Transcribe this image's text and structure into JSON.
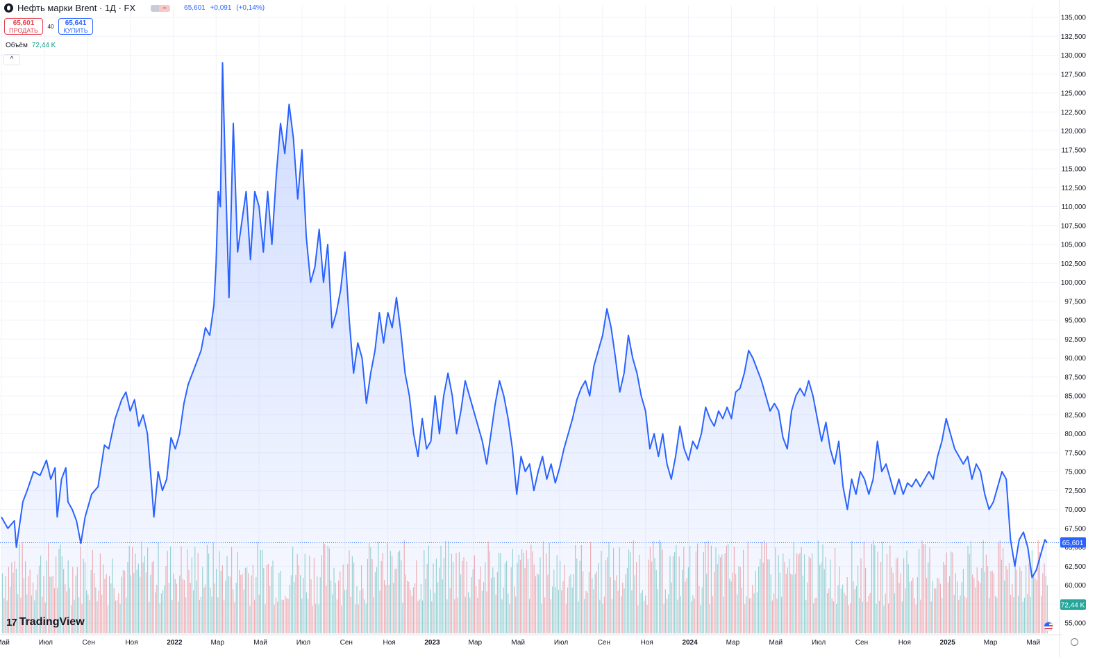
{
  "header": {
    "symbol_icon": "oil-drop-icon",
    "title": "Нефть марки Brent · 1Д · FX",
    "badge_right": "≈",
    "last_price": "65,601",
    "change": "+0,091",
    "change_pct": "(+0,14%)"
  },
  "trade": {
    "sell_price": "65,601",
    "sell_label": "ПРОДАТЬ",
    "spread": "40",
    "buy_price": "65,641",
    "buy_label": "КУПИТЬ"
  },
  "volume": {
    "label": "Объём",
    "value": "72,44 K"
  },
  "collapse_icon": "chevron-up-icon",
  "logo": {
    "mark": "17",
    "text": "TradingView"
  },
  "settings_icon": "gear-icon",
  "flag_icon": "us-flag-icon",
  "price_label": "65,601",
  "volume_label": "72,44 K",
  "colors": {
    "line": "#2962ff",
    "vol_up": "#26a69a",
    "vol_down": "#ef5350",
    "sell": "#e3434f",
    "buy": "#2962ff"
  },
  "chart_data": {
    "type": "area",
    "title": "Нефть марки Brent · 1Д · FX",
    "ylim": [
      52500,
      136000
    ],
    "y_ticks": [
      55000,
      57500,
      60000,
      62500,
      65000,
      67500,
      70000,
      72500,
      75000,
      77500,
      80000,
      82500,
      85000,
      87500,
      90000,
      92500,
      95000,
      97500,
      100000,
      102500,
      105000,
      107500,
      110000,
      112500,
      115000,
      117500,
      120000,
      122500,
      125000,
      127500,
      130000,
      132500,
      135000
    ],
    "y_tick_labels": [
      "55,000",
      "57,500",
      "60,000",
      "62,500",
      "65,000",
      "67,500",
      "70,000",
      "72,500",
      "75,000",
      "77,500",
      "80,000",
      "82,500",
      "85,000",
      "87,500",
      "90,000",
      "92,500",
      "95,000",
      "97,500",
      "100,000",
      "102,500",
      "105,000",
      "107,500",
      "110,000",
      "112,500",
      "115,000",
      "117,500",
      "120,000",
      "122,500",
      "125,000",
      "127,500",
      "130,000",
      "132,500",
      "135,000"
    ],
    "x_labels": [
      "Май",
      "Июл",
      "Сен",
      "Ноя",
      "2022",
      "Мар",
      "Май",
      "Июл",
      "Сен",
      "Ноя",
      "2023",
      "Мар",
      "Май",
      "Июл",
      "Сен",
      "Ноя",
      "2024",
      "Мар",
      "Май",
      "Июл",
      "Сен",
      "Ноя",
      "2025",
      "Мар",
      "Май"
    ],
    "x_label_bold": [
      false,
      false,
      false,
      false,
      true,
      false,
      false,
      false,
      false,
      false,
      true,
      false,
      false,
      false,
      false,
      false,
      true,
      false,
      false,
      false,
      false,
      false,
      true,
      false,
      false
    ],
    "x_label_months": [
      0,
      2,
      4,
      6,
      8,
      10,
      12,
      14,
      16,
      18,
      20,
      22,
      24,
      26,
      28,
      30,
      32,
      34,
      36,
      38,
      40,
      42,
      44,
      46,
      48
    ],
    "x_start_month": 0,
    "x_end_month": 48.7,
    "series": [
      {
        "name": "Нефть марки Brent",
        "points": [
          [
            0.0,
            69
          ],
          [
            0.3,
            67.5
          ],
          [
            0.6,
            68.5
          ],
          [
            0.7,
            65
          ],
          [
            1.0,
            71
          ],
          [
            1.2,
            72.5
          ],
          [
            1.5,
            75
          ],
          [
            1.8,
            74.5
          ],
          [
            2.1,
            76.5
          ],
          [
            2.3,
            74
          ],
          [
            2.5,
            75.5
          ],
          [
            2.6,
            69
          ],
          [
            2.8,
            74
          ],
          [
            3.0,
            75.5
          ],
          [
            3.1,
            71
          ],
          [
            3.3,
            70
          ],
          [
            3.5,
            68.5
          ],
          [
            3.7,
            65.5
          ],
          [
            3.9,
            69
          ],
          [
            4.2,
            72
          ],
          [
            4.5,
            73
          ],
          [
            4.8,
            78.5
          ],
          [
            5.0,
            78
          ],
          [
            5.3,
            82
          ],
          [
            5.6,
            84.5
          ],
          [
            5.8,
            85.5
          ],
          [
            6.0,
            83
          ],
          [
            6.2,
            84.5
          ],
          [
            6.4,
            81
          ],
          [
            6.6,
            82.5
          ],
          [
            6.8,
            80
          ],
          [
            7.0,
            73
          ],
          [
            7.1,
            69
          ],
          [
            7.3,
            75
          ],
          [
            7.5,
            72.5
          ],
          [
            7.7,
            74
          ],
          [
            7.9,
            79.5
          ],
          [
            8.1,
            78
          ],
          [
            8.3,
            80
          ],
          [
            8.5,
            84
          ],
          [
            8.7,
            86.5
          ],
          [
            8.9,
            88
          ],
          [
            9.1,
            89.5
          ],
          [
            9.3,
            91
          ],
          [
            9.5,
            94
          ],
          [
            9.7,
            93
          ],
          [
            9.9,
            97
          ],
          [
            10.0,
            102.5
          ],
          [
            10.1,
            112
          ],
          [
            10.2,
            110
          ],
          [
            10.3,
            129
          ],
          [
            10.4,
            118
          ],
          [
            10.5,
            108
          ],
          [
            10.6,
            98
          ],
          [
            10.8,
            121
          ],
          [
            11.0,
            104
          ],
          [
            11.2,
            108
          ],
          [
            11.4,
            112
          ],
          [
            11.6,
            103
          ],
          [
            11.8,
            112
          ],
          [
            12.0,
            110
          ],
          [
            12.2,
            104
          ],
          [
            12.4,
            112
          ],
          [
            12.6,
            105
          ],
          [
            12.8,
            114
          ],
          [
            13.0,
            121
          ],
          [
            13.2,
            117
          ],
          [
            13.4,
            123.5
          ],
          [
            13.6,
            119
          ],
          [
            13.8,
            111
          ],
          [
            14.0,
            117.5
          ],
          [
            14.2,
            106
          ],
          [
            14.4,
            100
          ],
          [
            14.6,
            102
          ],
          [
            14.8,
            107
          ],
          [
            15.0,
            100
          ],
          [
            15.2,
            105
          ],
          [
            15.4,
            94
          ],
          [
            15.6,
            96
          ],
          [
            15.8,
            99
          ],
          [
            16.0,
            104
          ],
          [
            16.2,
            95
          ],
          [
            16.4,
            88
          ],
          [
            16.6,
            92
          ],
          [
            16.8,
            90
          ],
          [
            17.0,
            84
          ],
          [
            17.2,
            88
          ],
          [
            17.4,
            91
          ],
          [
            17.6,
            96
          ],
          [
            17.8,
            92
          ],
          [
            18.0,
            96
          ],
          [
            18.2,
            94
          ],
          [
            18.4,
            98
          ],
          [
            18.6,
            93.5
          ],
          [
            18.8,
            88
          ],
          [
            19.0,
            85
          ],
          [
            19.2,
            80
          ],
          [
            19.4,
            77
          ],
          [
            19.6,
            82
          ],
          [
            19.8,
            78
          ],
          [
            20.0,
            79
          ],
          [
            20.2,
            85
          ],
          [
            20.4,
            80
          ],
          [
            20.6,
            85
          ],
          [
            20.8,
            88
          ],
          [
            21.0,
            85
          ],
          [
            21.2,
            80
          ],
          [
            21.4,
            83
          ],
          [
            21.6,
            87
          ],
          [
            21.8,
            85
          ],
          [
            22.0,
            83
          ],
          [
            22.2,
            81
          ],
          [
            22.4,
            79
          ],
          [
            22.6,
            76
          ],
          [
            22.8,
            80
          ],
          [
            23.0,
            84
          ],
          [
            23.2,
            87
          ],
          [
            23.4,
            85
          ],
          [
            23.6,
            82
          ],
          [
            23.8,
            78
          ],
          [
            24.0,
            72
          ],
          [
            24.2,
            77
          ],
          [
            24.4,
            75
          ],
          [
            24.6,
            76
          ],
          [
            24.8,
            72.5
          ],
          [
            25.0,
            75
          ],
          [
            25.2,
            77
          ],
          [
            25.4,
            74
          ],
          [
            25.6,
            76
          ],
          [
            25.8,
            73.5
          ],
          [
            26.0,
            75.5
          ],
          [
            26.2,
            78
          ],
          [
            26.4,
            80
          ],
          [
            26.6,
            82
          ],
          [
            26.8,
            84.5
          ],
          [
            27.0,
            86
          ],
          [
            27.2,
            87
          ],
          [
            27.4,
            85
          ],
          [
            27.6,
            89
          ],
          [
            27.8,
            91
          ],
          [
            28.0,
            93
          ],
          [
            28.2,
            96.5
          ],
          [
            28.4,
            94
          ],
          [
            28.6,
            90
          ],
          [
            28.8,
            85.5
          ],
          [
            29.0,
            88
          ],
          [
            29.2,
            93
          ],
          [
            29.4,
            90
          ],
          [
            29.6,
            88
          ],
          [
            29.8,
            85
          ],
          [
            30.0,
            83
          ],
          [
            30.2,
            78
          ],
          [
            30.4,
            80
          ],
          [
            30.6,
            77
          ],
          [
            30.8,
            80
          ],
          [
            31.0,
            76
          ],
          [
            31.2,
            74
          ],
          [
            31.4,
            77
          ],
          [
            31.6,
            81
          ],
          [
            31.8,
            78
          ],
          [
            32.0,
            76.5
          ],
          [
            32.2,
            79
          ],
          [
            32.4,
            78
          ],
          [
            32.6,
            80
          ],
          [
            32.8,
            83.5
          ],
          [
            33.0,
            82
          ],
          [
            33.2,
            81
          ],
          [
            33.4,
            83
          ],
          [
            33.6,
            82
          ],
          [
            33.8,
            83.5
          ],
          [
            34.0,
            82
          ],
          [
            34.2,
            85.5
          ],
          [
            34.4,
            86
          ],
          [
            34.6,
            88
          ],
          [
            34.8,
            91
          ],
          [
            35.0,
            90
          ],
          [
            35.2,
            88.5
          ],
          [
            35.4,
            87
          ],
          [
            35.6,
            85
          ],
          [
            35.8,
            83
          ],
          [
            36.0,
            84
          ],
          [
            36.2,
            83
          ],
          [
            36.4,
            79.5
          ],
          [
            36.6,
            78
          ],
          [
            36.8,
            83
          ],
          [
            37.0,
            85
          ],
          [
            37.2,
            86
          ],
          [
            37.4,
            85
          ],
          [
            37.6,
            87
          ],
          [
            37.8,
            85
          ],
          [
            38.0,
            82
          ],
          [
            38.2,
            79
          ],
          [
            38.4,
            81.5
          ],
          [
            38.6,
            78
          ],
          [
            38.8,
            76
          ],
          [
            39.0,
            79
          ],
          [
            39.2,
            73
          ],
          [
            39.4,
            70
          ],
          [
            39.6,
            74
          ],
          [
            39.8,
            72
          ],
          [
            40.0,
            75
          ],
          [
            40.2,
            74
          ],
          [
            40.4,
            72
          ],
          [
            40.6,
            74
          ],
          [
            40.8,
            79
          ],
          [
            41.0,
            75
          ],
          [
            41.2,
            76
          ],
          [
            41.4,
            74
          ],
          [
            41.6,
            72
          ],
          [
            41.8,
            74
          ],
          [
            42.0,
            72
          ],
          [
            42.2,
            73.5
          ],
          [
            42.4,
            73
          ],
          [
            42.6,
            74
          ],
          [
            42.8,
            73
          ],
          [
            43.0,
            74
          ],
          [
            43.2,
            75
          ],
          [
            43.4,
            74
          ],
          [
            43.6,
            77
          ],
          [
            43.8,
            79
          ],
          [
            44.0,
            82
          ],
          [
            44.2,
            80
          ],
          [
            44.4,
            78
          ],
          [
            44.6,
            77
          ],
          [
            44.8,
            76
          ],
          [
            45.0,
            77
          ],
          [
            45.2,
            74
          ],
          [
            45.4,
            76
          ],
          [
            45.6,
            75
          ],
          [
            45.8,
            72
          ],
          [
            46.0,
            70
          ],
          [
            46.2,
            71
          ],
          [
            46.4,
            73
          ],
          [
            46.6,
            75
          ],
          [
            46.8,
            74
          ],
          [
            47.0,
            66
          ],
          [
            47.2,
            62.5
          ],
          [
            47.4,
            66
          ],
          [
            47.6,
            67
          ],
          [
            47.8,
            65
          ],
          [
            48.0,
            61
          ],
          [
            48.2,
            62
          ],
          [
            48.4,
            64
          ],
          [
            48.6,
            66
          ],
          [
            48.7,
            65.601
          ]
        ]
      }
    ],
    "volume_series_name": "Объём",
    "last_value": 65.601
  }
}
